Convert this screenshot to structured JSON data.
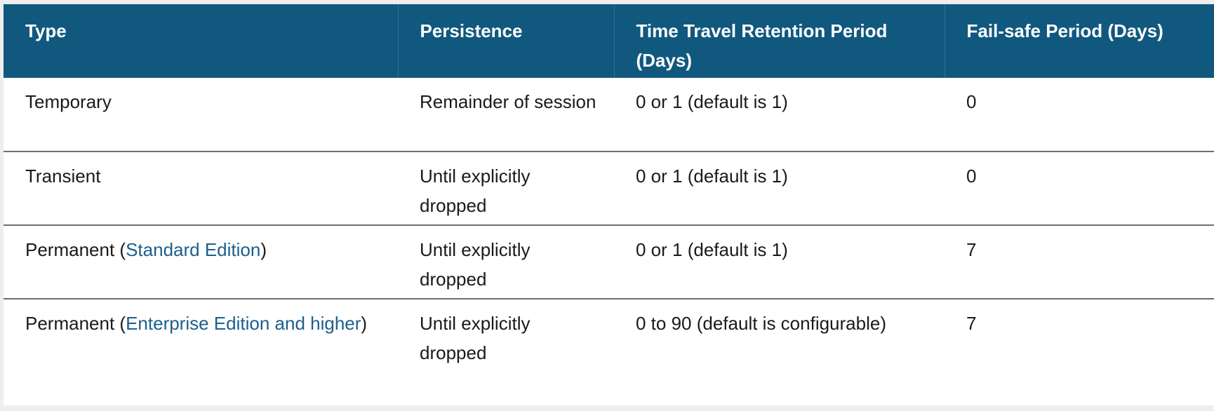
{
  "table": {
    "headers": [
      "Type",
      "Persistence",
      "Time Travel Retention Period (Days)",
      "Fail-safe Period (Days)"
    ],
    "rows": [
      {
        "type": "Temporary",
        "persistence": "Remainder of session",
        "time_travel": "0 or 1 (default is 1)",
        "fail_safe": "0"
      },
      {
        "type": "Transient",
        "persistence": "Until explicitly dropped",
        "time_travel": "0 or 1 (default is 1)",
        "fail_safe": "0"
      },
      {
        "type_prefix": "Permanent (",
        "type_link": "Standard Edition",
        "type_suffix": ")",
        "persistence": "Until explicitly dropped",
        "time_travel": "0 or 1 (default is 1)",
        "fail_safe": "7"
      },
      {
        "type_prefix": "Permanent (",
        "type_link": "Enterprise Edition and higher",
        "type_suffix": ")",
        "persistence": "Until explicitly dropped",
        "time_travel": "0 to 90 (default is configurable)",
        "fail_safe": "7"
      }
    ]
  },
  "colors": {
    "header_bg": "#11587f",
    "link": "#1d5f8c",
    "row_border": "#6e6e6e"
  }
}
